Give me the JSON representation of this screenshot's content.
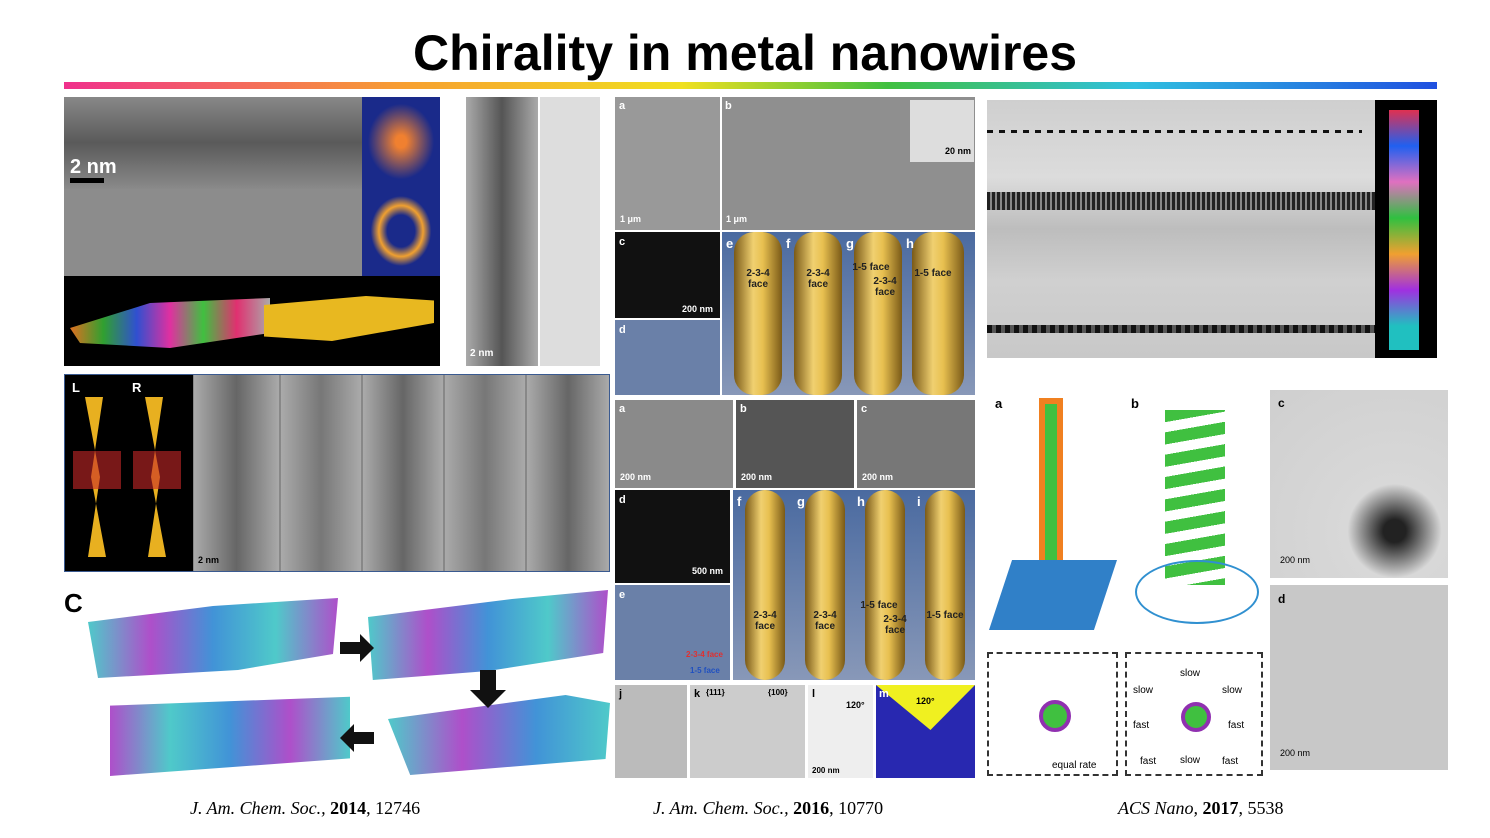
{
  "title": "Chirality in metal nanowires",
  "panels": {
    "tem": {
      "scale": "2 nm"
    },
    "vertical_tem": {
      "scale": "2 nm"
    },
    "sem_top": {
      "labels": [
        "a",
        "1 μm",
        "b",
        "1 μm",
        "20 nm",
        "c",
        "200 nm",
        "d"
      ]
    },
    "models_top": {
      "labels": [
        "e",
        "f",
        "g",
        "h"
      ],
      "faces": [
        "2-3-4 face",
        "2-3-4 face",
        "1-5 face",
        "2-3-4 face",
        "1-5 face"
      ]
    },
    "sem_mid": {
      "labels": [
        "a",
        "200 nm",
        "b",
        "200 nm",
        "c",
        "200 nm",
        "d",
        "500 nm",
        "e",
        "2-3-4 face",
        "1-5 face"
      ]
    },
    "models_mid": {
      "labels": [
        "f",
        "g",
        "h",
        "i"
      ],
      "faces": [
        "2-3-4 face",
        "2-3-4 face",
        "1-5 face",
        "2-3-4 face",
        "1-5 face"
      ]
    },
    "bottom_row": {
      "labels": [
        "j",
        "k",
        "{111}",
        "{100}",
        "l",
        "120°",
        "200 nm",
        "m",
        "120°"
      ]
    },
    "lr": {
      "labels": [
        "L",
        "R",
        "2 nm"
      ]
    },
    "network": {
      "label": "C"
    },
    "growth_a": {
      "labels": [
        "a",
        "equal rate"
      ]
    },
    "growth_b": {
      "labels": [
        "b",
        "slow",
        "slow",
        "slow",
        "fast",
        "fast",
        "fast",
        "slow",
        "fast"
      ]
    },
    "tem_c": {
      "labels": [
        "c",
        "200 nm"
      ]
    },
    "tem_d": {
      "labels": [
        "d",
        "200 nm"
      ]
    }
  },
  "citations": [
    {
      "journal": "J. Am. Chem. Soc.,",
      "year": "2014",
      "rest": ", 12746"
    },
    {
      "journal": "J. Am. Chem. Soc.,",
      "year": "2016",
      "rest": ", 10770"
    },
    {
      "journal": "ACS Nano,",
      "year": "2017",
      "rest": ", 5538"
    }
  ]
}
